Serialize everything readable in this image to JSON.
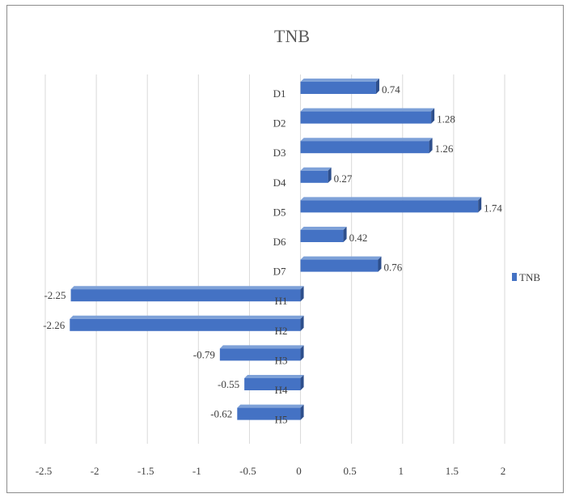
{
  "chart_data": {
    "type": "bar",
    "orientation": "horizontal",
    "title": "TNB",
    "xlabel": "",
    "ylabel": "",
    "categories": [
      "D1",
      "D2",
      "D3",
      "D4",
      "D5",
      "D6",
      "D7",
      "H1",
      "H2",
      "H3",
      "H4",
      "H5"
    ],
    "series": [
      {
        "name": "TNB",
        "values": [
          0.74,
          1.28,
          1.26,
          0.27,
          1.74,
          0.42,
          0.76,
          -2.25,
          -2.26,
          -0.79,
          -0.55,
          -0.62
        ],
        "color": "#4472c4"
      }
    ],
    "data_labels": [
      "0.74",
      "1.28",
      "1.26",
      "0.27",
      "1.74",
      "0.42",
      "0.76",
      "-2.25",
      "-2.26",
      "-0.79",
      "-0.55",
      "-0.62"
    ],
    "xlim": [
      -2.5,
      2
    ],
    "x_ticks": [
      -2.5,
      -2,
      -1.5,
      -1,
      -0.5,
      0,
      0.5,
      1,
      1.5,
      2
    ],
    "x_tick_labels": [
      "-2.5",
      "-2",
      "-1.5",
      "-1",
      "-0.5",
      "0",
      "0.5",
      "1",
      "1.5",
      "2"
    ],
    "grid": "vertical",
    "legend": {
      "position": "right",
      "entries": [
        "TNB"
      ]
    },
    "style": "3d-bar"
  }
}
